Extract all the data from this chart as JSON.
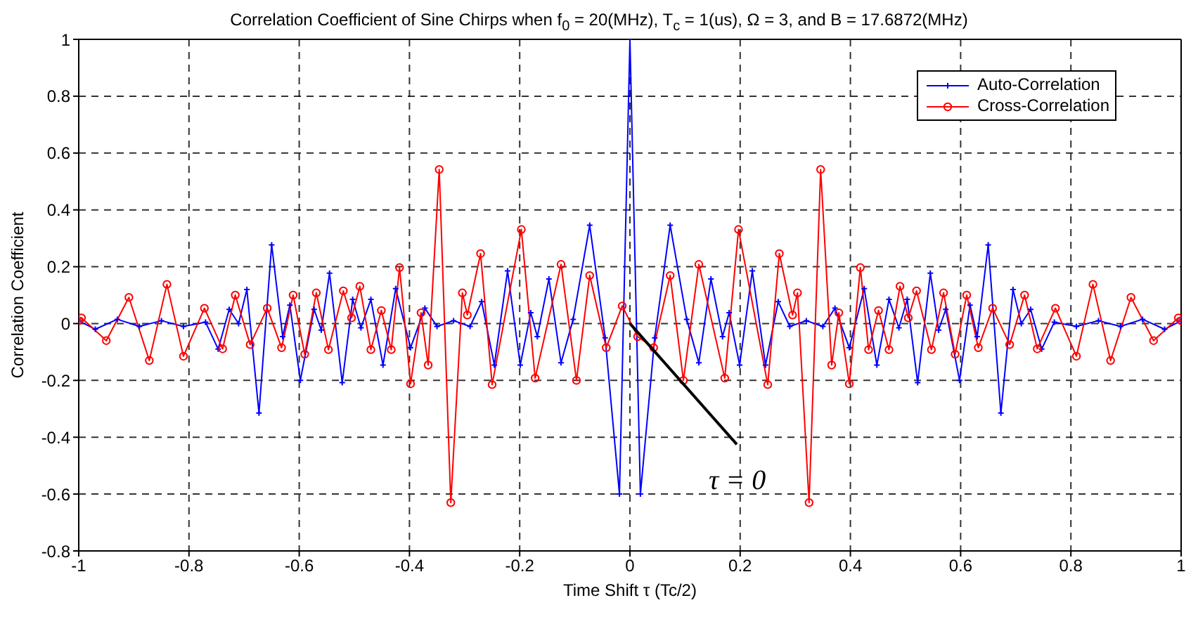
{
  "chart_data": {
    "type": "line",
    "title": "Correlation Coefficient of Sine Chirps when f$_{0}$ = 20(MHz), T$_{c}$ = 1(us), Ω = 3, and B = 17.6872(MHz)",
    "xlabel": "Time Shift τ (Tc/2)",
    "ylabel": "Correlation Coefficient",
    "xlim": [
      -1,
      1
    ],
    "xticks": [
      -1,
      -0.8,
      -0.6,
      -0.4,
      -0.2,
      0,
      0.2,
      0.4,
      0.6,
      0.8,
      1
    ],
    "ylim": [
      -0.8,
      1
    ],
    "yticks": [
      -0.8,
      -0.6,
      -0.4,
      -0.2,
      0,
      0.2,
      0.4,
      0.6,
      0.8,
      1
    ],
    "grid": true,
    "legend": "top right",
    "annotations": [
      {
        "text": "τ = 0",
        "x": 0,
        "y": 0
      }
    ],
    "series": [
      {
        "name": "Auto-Correlation",
        "color": "#0000ff",
        "marker": "cross",
        "x": [
          -1,
          -0.97,
          -0.93,
          -0.89,
          -0.85,
          -0.81,
          -0.77,
          -0.747,
          -0.727,
          -0.71,
          -0.695,
          -0.673,
          -0.65,
          -0.63,
          -0.617,
          -0.598,
          -0.573,
          -0.56,
          -0.545,
          -0.522,
          -0.503,
          -0.488,
          -0.47,
          -0.448,
          -0.425,
          -0.398,
          -0.372,
          -0.35,
          -0.32,
          -0.29,
          -0.269,
          -0.246,
          -0.222,
          -0.199,
          -0.18,
          -0.168,
          -0.147,
          -0.125,
          -0.103,
          -0.073,
          -0.045,
          -0.019,
          0,
          0.019,
          0.045,
          0.073,
          0.103,
          0.125,
          0.147,
          0.168,
          0.18,
          0.199,
          0.222,
          0.246,
          0.269,
          0.29,
          0.32,
          0.35,
          0.372,
          0.398,
          0.425,
          0.448,
          0.47,
          0.488,
          0.503,
          0.522,
          0.545,
          0.56,
          0.573,
          0.598,
          0.617,
          0.63,
          0.65,
          0.673,
          0.695,
          0.71,
          0.727,
          0.747,
          0.77,
          0.81,
          0.85,
          0.89,
          0.93,
          0.97,
          1
        ],
        "values": [
          0.01,
          -0.02,
          0.015,
          -0.01,
          0.01,
          -0.01,
          0.005,
          -0.09,
          0.05,
          0,
          0.12,
          -0.315,
          0.277,
          -0.046,
          0.065,
          -0.2,
          0.05,
          -0.023,
          0.177,
          -0.208,
          0.085,
          -0.015,
          0.085,
          -0.146,
          0.123,
          -0.085,
          0.054,
          -0.01,
          0.01,
          -0.01,
          0.077,
          -0.146,
          0.185,
          -0.146,
          0.038,
          -0.046,
          0.157,
          -0.138,
          0.015,
          0.346,
          -0.05,
          -0.6,
          1,
          -0.6,
          -0.05,
          0.346,
          0.015,
          -0.138,
          0.157,
          -0.046,
          0.038,
          -0.146,
          0.185,
          -0.146,
          0.077,
          -0.01,
          0.01,
          -0.01,
          0.054,
          -0.085,
          0.123,
          -0.146,
          0.085,
          -0.015,
          0.085,
          -0.208,
          0.177,
          -0.023,
          0.05,
          -0.2,
          0.065,
          -0.046,
          0.277,
          -0.315,
          0.12,
          0,
          0.05,
          -0.09,
          0.005,
          -0.01,
          0.01,
          -0.01,
          0.015,
          -0.02,
          0.01
        ]
      },
      {
        "name": "Cross-Correlation",
        "color": "#ff0000",
        "marker": "circle",
        "x": [
          -1,
          -0.995,
          -0.95,
          -0.909,
          -0.872,
          -0.84,
          -0.81,
          -0.772,
          -0.739,
          -0.716,
          -0.689,
          -0.658,
          -0.632,
          -0.611,
          -0.59,
          -0.569,
          -0.547,
          -0.52,
          -0.505,
          -0.49,
          -0.47,
          -0.451,
          -0.433,
          -0.418,
          -0.398,
          -0.379,
          -0.366,
          -0.346,
          -0.325,
          -0.304,
          -0.295,
          -0.271,
          -0.25,
          -0.197,
          -0.172,
          -0.125,
          -0.097,
          -0.073,
          -0.043,
          -0.014,
          0.014,
          0.043,
          0.073,
          0.097,
          0.125,
          0.172,
          0.197,
          0.25,
          0.271,
          0.295,
          0.304,
          0.325,
          0.346,
          0.366,
          0.379,
          0.398,
          0.418,
          0.433,
          0.451,
          0.47,
          0.49,
          0.505,
          0.52,
          0.547,
          0.569,
          0.59,
          0.611,
          0.632,
          0.658,
          0.689,
          0.716,
          0.739,
          0.772,
          0.81,
          0.84,
          0.872,
          0.909,
          0.95,
          0.995,
          1
        ],
        "values": [
          0.01,
          0.02,
          -0.06,
          0.092,
          -0.13,
          0.138,
          -0.115,
          0.054,
          -0.089,
          0.1,
          -0.074,
          0.054,
          -0.085,
          0.1,
          -0.108,
          0.108,
          -0.092,
          0.115,
          0.02,
          0.131,
          -0.092,
          0.046,
          -0.092,
          0.197,
          -0.212,
          0.038,
          -0.146,
          0.542,
          -0.63,
          0.108,
          0.03,
          0.246,
          -0.215,
          0.331,
          -0.192,
          0.208,
          -0.2,
          0.169,
          -0.085,
          0.062,
          -0.046,
          -0.085,
          0.169,
          -0.2,
          0.208,
          -0.192,
          0.331,
          -0.215,
          0.246,
          0.03,
          0.108,
          -0.63,
          0.542,
          -0.146,
          0.038,
          -0.212,
          0.197,
          -0.092,
          0.046,
          -0.092,
          0.131,
          0.02,
          0.115,
          -0.092,
          0.108,
          -0.108,
          0.1,
          -0.085,
          0.054,
          -0.074,
          0.1,
          -0.089,
          0.054,
          -0.115,
          0.138,
          -0.13,
          0.092,
          -0.06,
          0.02,
          0.01
        ]
      }
    ]
  }
}
